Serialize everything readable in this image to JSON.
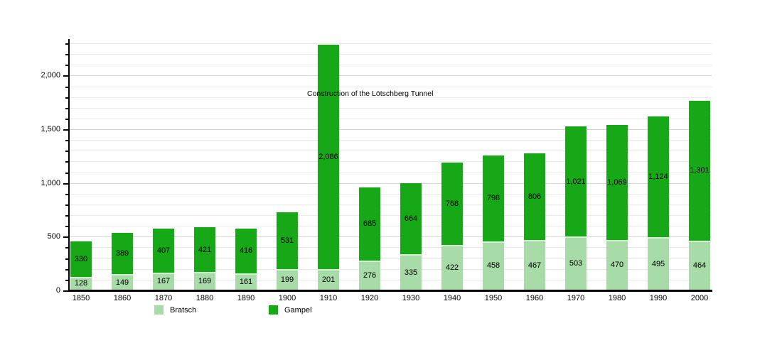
{
  "chart_data": {
    "type": "bar",
    "stacked": true,
    "title": "",
    "xlabel": "",
    "ylabel": "",
    "categories": [
      "1850",
      "1860",
      "1870",
      "1880",
      "1890",
      "1900",
      "1910",
      "1920",
      "1930",
      "1940",
      "1950",
      "1960",
      "1970",
      "1980",
      "1990",
      "2000"
    ],
    "series": [
      {
        "name": "Bratsch",
        "color": "#a7dba7",
        "values": [
          128,
          149,
          167,
          169,
          161,
          199,
          201,
          276,
          335,
          422,
          458,
          467,
          503,
          470,
          495,
          464
        ]
      },
      {
        "name": "Gampel",
        "color": "#17a817",
        "values": [
          330,
          389,
          407,
          421,
          416,
          531,
          2086,
          685,
          664,
          768,
          798,
          806,
          1021,
          1069,
          1124,
          1301
        ]
      }
    ],
    "annotation": "Construction of the Lötschberg Tunnel",
    "y_ticks": [
      0,
      500,
      1000,
      1500,
      2000
    ],
    "ylim": [
      0,
      2340
    ],
    "minor_gridline_interval": 100,
    "major_tick_interval": 500,
    "grid": "on",
    "legend_position": "bottom",
    "value_labels_format": "thousands-comma"
  }
}
